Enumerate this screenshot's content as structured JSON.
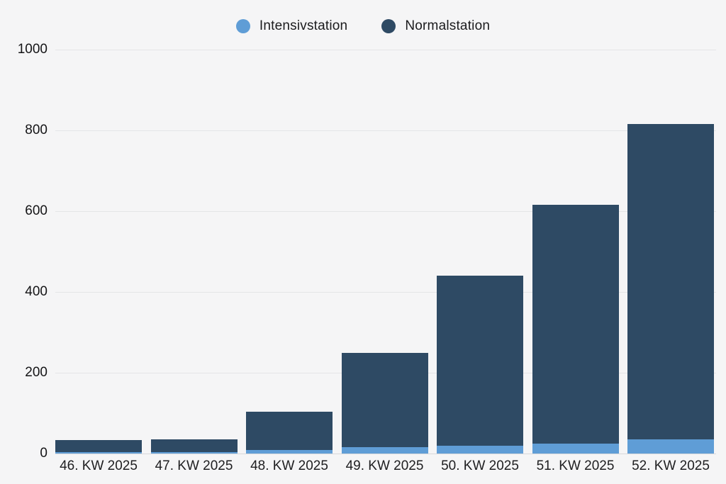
{
  "colors": {
    "background": "#f5f5f6",
    "gridline": "#e4e5e7",
    "axis_line": "#d7d8db",
    "text": "#1c1c1e"
  },
  "legend": {
    "items": [
      {
        "label": "Intensivstation",
        "color": "#5f9dd6"
      },
      {
        "label": "Normalstation",
        "color": "#2e4a64"
      }
    ]
  },
  "chart_data": {
    "type": "bar",
    "stacked": true,
    "title": "",
    "xlabel": "",
    "ylabel": "",
    "categories": [
      "46. KW 2025",
      "47. KW 2025",
      "48. KW 2025",
      "49. KW 2025",
      "50. KW 2025",
      "51. KW 2025",
      "52. KW 2025"
    ],
    "series": [
      {
        "name": "Intensivstation",
        "color": "#5f9dd6",
        "values": [
          3,
          4,
          8,
          15,
          20,
          25,
          35
        ]
      },
      {
        "name": "Normalstation",
        "color": "#2e4a64",
        "values": [
          30,
          32,
          96,
          235,
          420,
          590,
          780
        ]
      }
    ],
    "totals": [
      33,
      36,
      104,
      250,
      440,
      615,
      815
    ],
    "ylim": [
      0,
      1000
    ],
    "ytick_step": 200,
    "ytick_labels": [
      "0",
      "200",
      "400",
      "600",
      "800",
      "1000"
    ],
    "grid": "horizontal",
    "legend_position": "top-center"
  }
}
